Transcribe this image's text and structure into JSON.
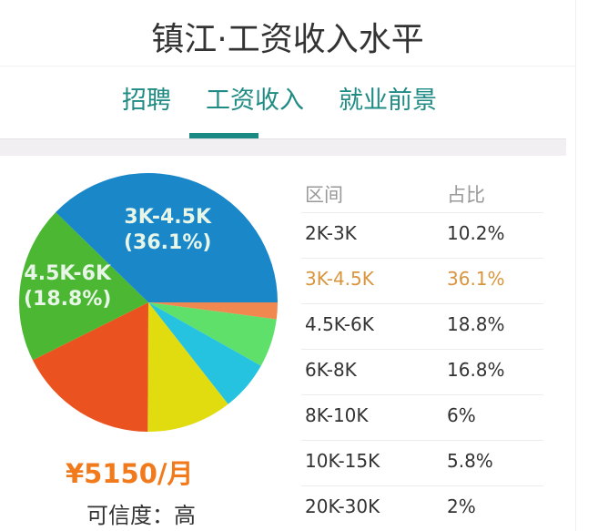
{
  "header": {
    "title": "镇江·工资收入水平"
  },
  "tabs": [
    {
      "label": "招聘",
      "active": false
    },
    {
      "label": "工资收入",
      "active": true
    },
    {
      "label": "就业前景",
      "active": false
    }
  ],
  "colors": {
    "accent": "#1c8a84",
    "highlight": "#d9953e",
    "salary": "#f07a1c"
  },
  "table": {
    "headers": [
      "区间",
      "占比"
    ],
    "rows": [
      {
        "range": "2K-3K",
        "share": "10.2%",
        "highlight": false
      },
      {
        "range": "3K-4.5K",
        "share": "36.1%",
        "highlight": true
      },
      {
        "range": "4.5K-6K",
        "share": "18.8%",
        "highlight": false
      },
      {
        "range": "6K-8K",
        "share": "16.8%",
        "highlight": false
      },
      {
        "range": "8K-10K",
        "share": "6%",
        "highlight": false
      },
      {
        "range": "10K-15K",
        "share": "5.8%",
        "highlight": false
      },
      {
        "range": "20K-30K",
        "share": "2%",
        "highlight": false
      }
    ]
  },
  "pie_labels": {
    "a_range": "3K-4.5K",
    "a_pct": "(36.1%)",
    "b_range": "4.5K-6K",
    "b_pct": "(18.8%)"
  },
  "summary": {
    "average_salary": "¥5150/月",
    "credibility": "可信度：高"
  },
  "chart_data": {
    "type": "pie",
    "title": "镇江·工资收入水平",
    "categories": [
      "2K-3K",
      "3K-4.5K",
      "4.5K-6K",
      "6K-8K",
      "8K-10K",
      "10K-15K",
      "20K-30K"
    ],
    "values": [
      10.2,
      36.1,
      18.8,
      16.8,
      6,
      5.8,
      2
    ],
    "colors": [
      "#e0dc10",
      "#1a87c9",
      "#4cb733",
      "#ea5320",
      "#25c3e0",
      "#5fe06a",
      "#f08850"
    ],
    "labeled_slices": [
      "3K-4.5K (36.1%)",
      "4.5K-6K (18.8%)"
    ],
    "unit": "%"
  }
}
